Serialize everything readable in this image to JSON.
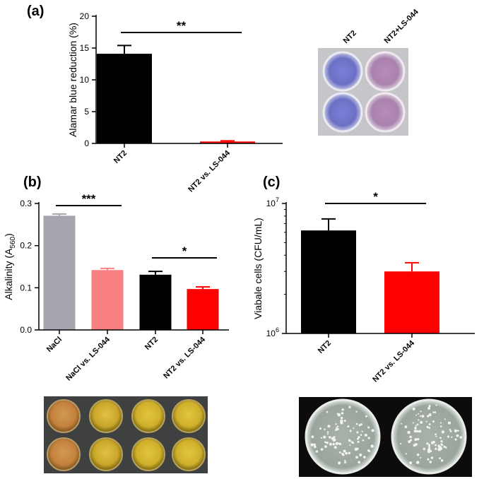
{
  "panels": {
    "a": {
      "letter": "(a)",
      "photo": {
        "labels": [
          "NT2",
          "NT2+LS-044"
        ]
      }
    },
    "b": {
      "letter": "(b)"
    },
    "c": {
      "letter": "(c)"
    }
  },
  "chart_data": [
    {
      "id": "a",
      "type": "bar",
      "categories": [
        "NT2",
        "NT2 vs. LS-044"
      ],
      "values": [
        14.1,
        0.3
      ],
      "errors": [
        1.3,
        0.1
      ],
      "colors": [
        "#000000",
        "#ff0000"
      ],
      "ylabel": "Alamar blue reduction (%)",
      "xlabel": "",
      "title": "",
      "ylim": [
        0,
        20
      ],
      "yticks": [
        0,
        5,
        10,
        15,
        20
      ],
      "yscale": "linear",
      "significance": [
        {
          "from": 0,
          "to": 1,
          "label": "**"
        }
      ],
      "grid": false
    },
    {
      "id": "b",
      "type": "bar",
      "categories": [
        "NaCl",
        "NaCl vs. LS-044",
        "NT2",
        "NT2 vs. LS-044"
      ],
      "values": [
        0.271,
        0.142,
        0.131,
        0.097
      ],
      "errors": [
        0.004,
        0.004,
        0.008,
        0.005
      ],
      "colors": [
        "#a6a5ad",
        "#f88080",
        "#000000",
        "#ff0000"
      ],
      "ylabel": "Alkalinity (A",
      "ylabel_sub": "560",
      "ylabel_end": ")",
      "xlabel": "",
      "title": "",
      "ylim": [
        0,
        0.3
      ],
      "yticks": [
        "0.0",
        "0.1",
        "0.2",
        "0.3"
      ],
      "yscale": "linear",
      "significance": [
        {
          "from": 0,
          "to": 1,
          "label": "***"
        },
        {
          "from": 2,
          "to": 3,
          "label": "*"
        }
      ],
      "grid": false
    },
    {
      "id": "c",
      "type": "bar",
      "categories": [
        "NT2",
        "NT2 vs. LS-044"
      ],
      "values": [
        6200000,
        3000000
      ],
      "errors": [
        1400000,
        500000
      ],
      "colors": [
        "#000000",
        "#ff0000"
      ],
      "ylabel": "Viabale cells (CFU/mL)",
      "xlabel": "",
      "title": "",
      "ylim": [
        1000000,
        10000000
      ],
      "yticks": [
        "10",
        "10"
      ],
      "ytick_exponents": [
        "6",
        "7"
      ],
      "yscale": "log",
      "significance": [
        {
          "from": 0,
          "to": 1,
          "label": "*"
        }
      ],
      "grid": false
    }
  ]
}
